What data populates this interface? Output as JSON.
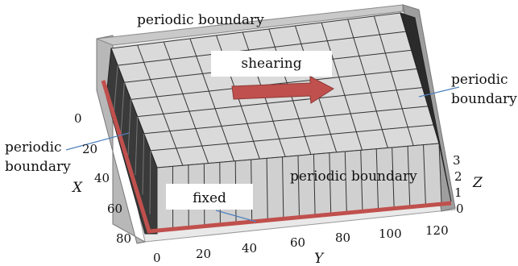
{
  "labels": {
    "periodic_top": "periodic boundary",
    "periodic_right_1": "periodic",
    "periodic_right_2": "boundary",
    "periodic_left_1": "periodic",
    "periodic_left_2": "boundary",
    "periodic_front": "periodic boundary",
    "shearing": "shearing",
    "fixed": "fixed"
  },
  "axes": {
    "x_name": "X",
    "y_name": "Y",
    "z_name": "Z",
    "x_ticks": [
      "0",
      "20",
      "40",
      "60",
      "80"
    ],
    "y_ticks": [
      "0",
      "20",
      "40",
      "60",
      "80",
      "100",
      "120"
    ],
    "z_ticks": [
      "0",
      "1",
      "2",
      "3"
    ]
  },
  "grid": {
    "top_cols": 11,
    "top_rows": 7,
    "side_cols": 18
  },
  "colors": {
    "block_top": "#d9d9d9",
    "block_side": "#c8c8c8",
    "block_dark": "#2b2b2b",
    "fixed_edge": "#c0504d",
    "shear_arrow": "#c0504d",
    "pointer": "#4f81bd",
    "floor": "#e6e6e6",
    "wall": "#b3b3b3"
  }
}
